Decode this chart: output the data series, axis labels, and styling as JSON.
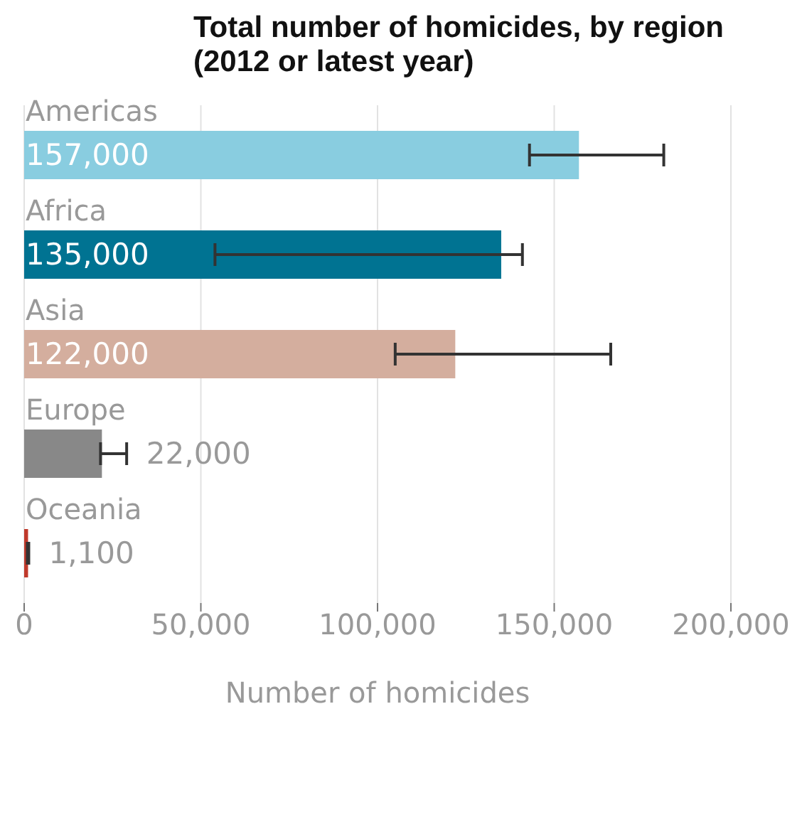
{
  "chart_data": {
    "type": "bar",
    "orientation": "horizontal",
    "title": "Total number of homicides, by region (2012 or latest year)",
    "xlabel": "Number of homicides",
    "categories": [
      "Americas",
      "Africa",
      "Asia",
      "Europe",
      "Oceania"
    ],
    "values": [
      157000,
      135000,
      122000,
      22000,
      1100
    ],
    "colors": [
      "#89cde0",
      "#007392",
      "#d4ae9e",
      "#888888",
      "#c0392b"
    ],
    "errors": [
      [
        143000,
        181000
      ],
      [
        54000,
        141000
      ],
      [
        105000,
        166000
      ],
      [
        21600,
        29000
      ],
      [
        900,
        1300
      ]
    ],
    "value_labels": [
      "157,000",
      "135,000",
      "122,000",
      "22,000",
      "1,100"
    ],
    "xlim": [
      0,
      200000
    ],
    "xticks": [
      0,
      {
        "value": 50000,
        "label": "50,000"
      },
      {
        "value": 100000,
        "label": "100,000"
      },
      {
        "value": 150000,
        "label": "150,000"
      },
      {
        "value": 200000,
        "label": "200,000"
      }
    ],
    "grid": "x"
  }
}
